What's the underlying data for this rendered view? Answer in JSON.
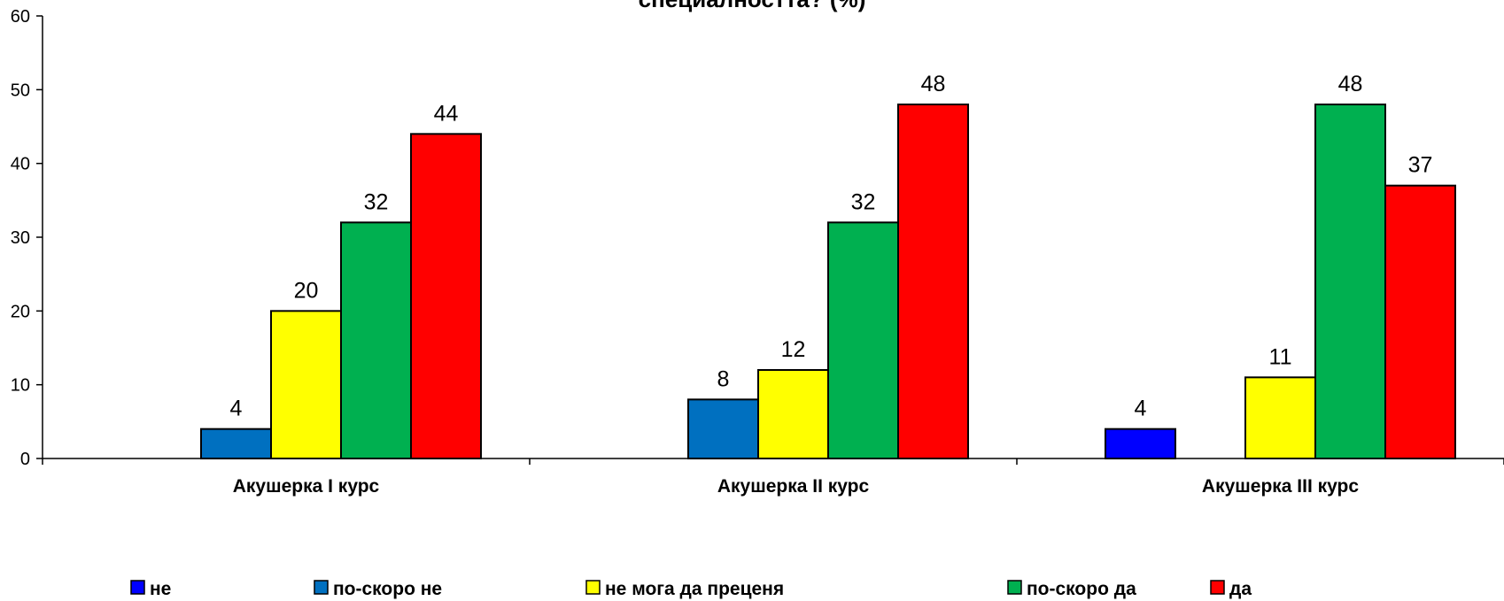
{
  "chart_data": {
    "type": "bar",
    "title": "специалността? (%)",
    "xlabel": "",
    "ylabel": "",
    "ylim": [
      0,
      60
    ],
    "yticks": [
      0,
      10,
      20,
      30,
      40,
      50,
      60
    ],
    "grid": false,
    "legend_position": "bottom",
    "categories": [
      "Акушерка I курс",
      "Акушерка II курс",
      "Акушерка III курс"
    ],
    "series": [
      {
        "name": "не",
        "color": "#0000FF",
        "values": [
          null,
          null,
          4
        ]
      },
      {
        "name": "по-скоро не",
        "color": "#0070C0",
        "values": [
          4,
          8,
          null
        ]
      },
      {
        "name": "не мога да преценя",
        "color": "#FFFF00",
        "values": [
          20,
          12,
          11
        ]
      },
      {
        "name": "по-скоро да",
        "color": "#00B050",
        "values": [
          32,
          32,
          48
        ]
      },
      {
        "name": "да",
        "color": "#FF0000",
        "values": [
          44,
          48,
          37
        ]
      }
    ]
  }
}
